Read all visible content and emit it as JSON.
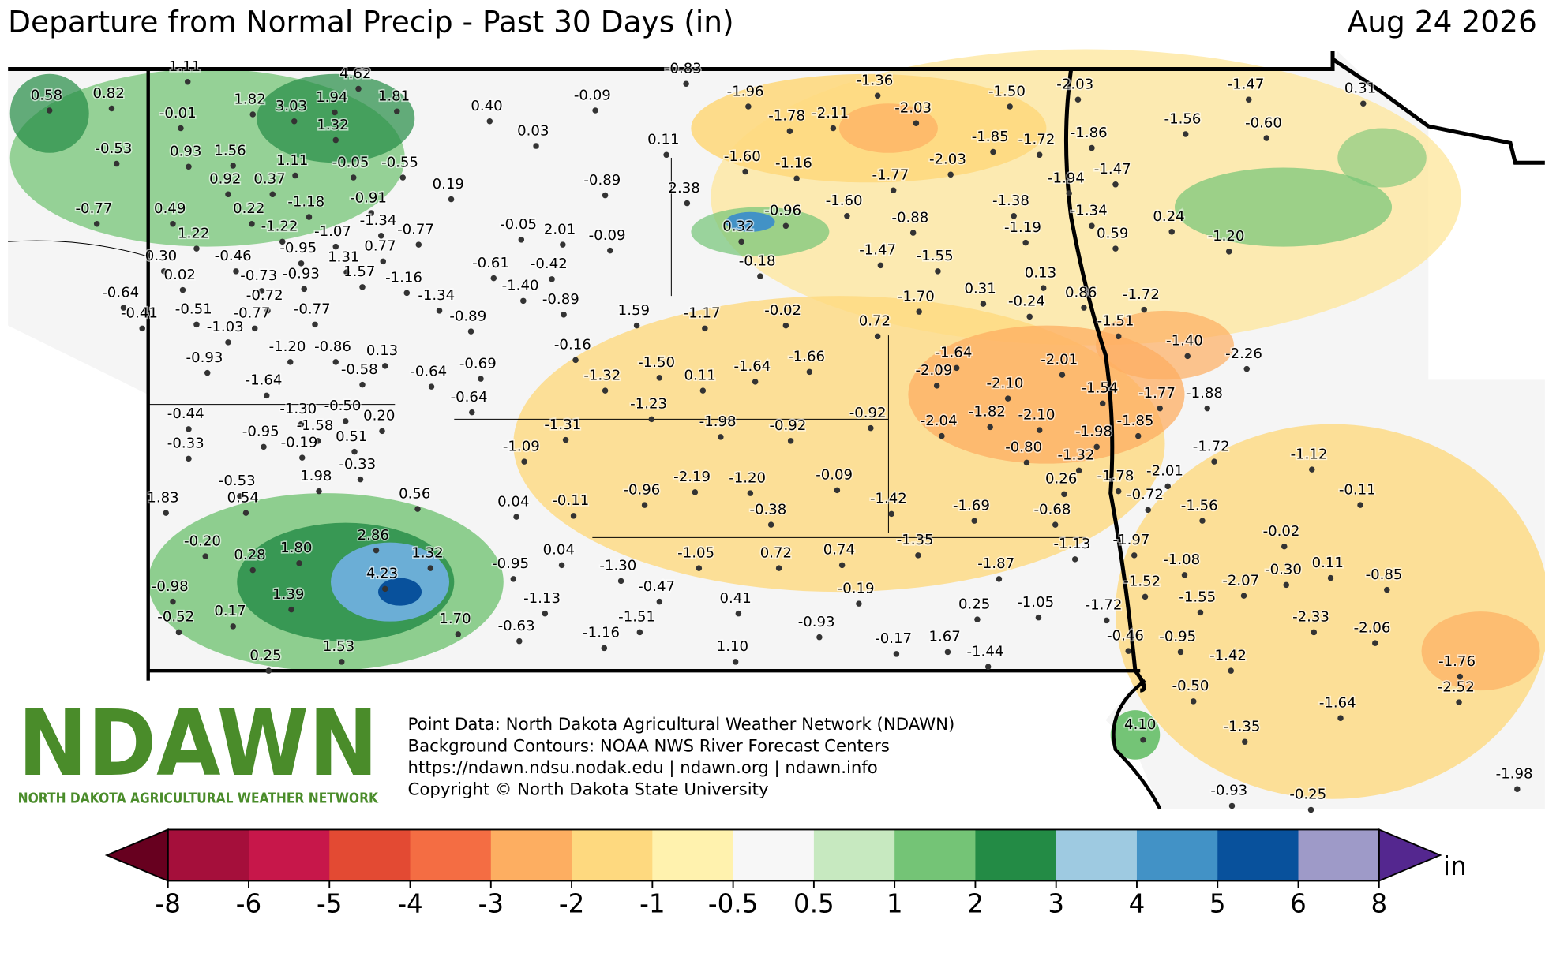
{
  "header": {
    "title": "Departure from Normal Precip - Past 30 Days (in)",
    "date": "Aug 24 2026"
  },
  "stations": [
    "0.58",
    "0.82",
    "1.11",
    "4.62",
    "1.82",
    "3.03",
    "1.94",
    "1.81",
    "0.40",
    "0.03",
    "-0.09",
    "-0.83",
    "-1.96",
    "-1.36",
    "-1.50",
    "-2.03",
    "-1.47",
    "0.31",
    "-0.01",
    "-0.53",
    "0.93",
    "1.56",
    "1.32",
    "-1.78",
    "-2.11",
    "-2.03",
    "-1.56",
    "-0.60",
    "0.11",
    "-1.85",
    "-1.72",
    "-1.86",
    "1.11",
    "-0.05",
    "-0.55",
    "0.92",
    "0.37",
    "-1.60",
    "-1.16",
    "-2.03",
    "-1.94",
    "-1.47",
    "0.19",
    "-0.89",
    "2.38",
    "-1.77",
    "-0.77",
    "0.49",
    "0.22",
    "-1.18",
    "-0.91",
    "-1.60",
    "-0.96",
    "-1.38",
    "-1.34",
    "0.24",
    "-0.88",
    "1.22",
    "-1.22",
    "-1.34",
    "-0.05",
    "2.01",
    "-0.77",
    "-1.07",
    "0.32",
    "-1.19",
    "0.59",
    "-1.20",
    "-0.09",
    "0.30",
    "-0.46",
    "-0.95",
    "0.77",
    "1.31",
    "-1.47",
    "-1.55",
    "-0.18",
    "-0.61",
    "-0.42",
    "0.02",
    "-0.73",
    "-0.93",
    "1.57",
    "-1.16",
    "0.13",
    "-1.40",
    "0.31",
    "0.86",
    "-1.72",
    "-0.64",
    "-0.72",
    "-1.34",
    "-0.89",
    "-1.70",
    "-0.24",
    "-0.41",
    "-0.51",
    "-0.77",
    "-0.77",
    "-0.89",
    "1.59",
    "-1.17",
    "-0.02",
    "0.72",
    "-1.51",
    "-1.03",
    "-1.40",
    "-1.20",
    "-0.86",
    "0.13",
    "-0.16",
    "-2.26",
    "-0.93",
    "-1.50",
    "-1.66",
    "-1.64",
    "-2.01",
    "-0.58",
    "-0.64",
    "-0.69",
    "-1.32",
    "0.11",
    "-1.64",
    "-2.09",
    "-2.10",
    "-1.64",
    "-1.54",
    "-1.77",
    "-1.88",
    "-0.64",
    "-1.23",
    "-1.30",
    "-0.50",
    "0.20",
    "-0.44",
    "-1.82",
    "-2.10",
    "-0.92",
    "-1.31",
    "-1.98",
    "-0.92",
    "-2.04",
    "-1.98",
    "-1.85",
    "-1.58",
    "-0.95",
    "0.51",
    "-0.19",
    "-0.33",
    "-1.72",
    "-0.80",
    "-1.32",
    "-1.09",
    "-1.12",
    "-0.33",
    "1.98",
    "-2.01",
    "0.26",
    "-1.78",
    "-2.19",
    "-1.20",
    "-0.09",
    "-0.72",
    "-0.53",
    "-0.96",
    "-0.11",
    "1.83",
    "0.54",
    "0.56",
    "0.04",
    "-0.11",
    "-1.42",
    "-1.56",
    "-1.69",
    "-0.68",
    "-0.38",
    "-0.20",
    "2.86",
    "-0.02",
    "-1.35",
    "-1.13",
    "-1.97",
    "1.80",
    "1.32",
    "-1.05",
    "0.72",
    "0.74",
    "0.04",
    "0.28",
    "-1.08",
    "0.11",
    "-0.95",
    "-1.30",
    "-1.87",
    "-0.30",
    "-2.07",
    "-0.85",
    "4.23",
    "-1.52",
    "-0.98",
    "-0.47",
    "-0.19",
    "1.39",
    "-1.13",
    "0.41",
    "-1.55",
    "0.25",
    "-1.05",
    "-1.72",
    "-0.52",
    "0.17",
    "1.70",
    "-1.51",
    "-0.93",
    "-2.33",
    "-2.06",
    "-0.63",
    "-1.16",
    "-0.17",
    "1.67",
    "-0.46",
    "-0.95",
    "1.53",
    "1.10",
    "-1.44",
    "-1.42",
    "-1.76",
    "0.25",
    "-2.52",
    "-0.50",
    "-1.64",
    "-1.35",
    "4.10",
    "-1.98",
    "-0.93",
    "-0.25"
  ],
  "logo": {
    "name": "NDAWN",
    "tagline": "NORTH DAKOTA AGRICULTURAL WEATHER NETWORK"
  },
  "credits": [
    "Point Data: North Dakota Agricultural Weather Network (NDAWN)",
    "Background Contours: NOAA NWS River Forecast Centers",
    "https://ndawn.ndsu.nodak.edu | ndawn.org | ndawn.info",
    "Copyright © North Dakota State University"
  ],
  "colorbar": {
    "ticks": [
      -8,
      -6,
      -5,
      -4,
      -3,
      -2,
      -1,
      -0.5,
      0.5,
      1,
      2,
      3,
      4,
      5,
      6,
      8
    ],
    "colors": [
      "#a50f3b",
      "#c7174a",
      "#e34a33",
      "#f46d43",
      "#fdae61",
      "#fed97f",
      "#fff2ae",
      "#f7f7f7",
      "#c7e9c0",
      "#74c476",
      "#238b45",
      "#9ecae1",
      "#4292c6",
      "#08519c",
      "#9e9ac8"
    ],
    "under_color": "#67001f",
    "over_color": "#54278f",
    "unit": "in"
  }
}
